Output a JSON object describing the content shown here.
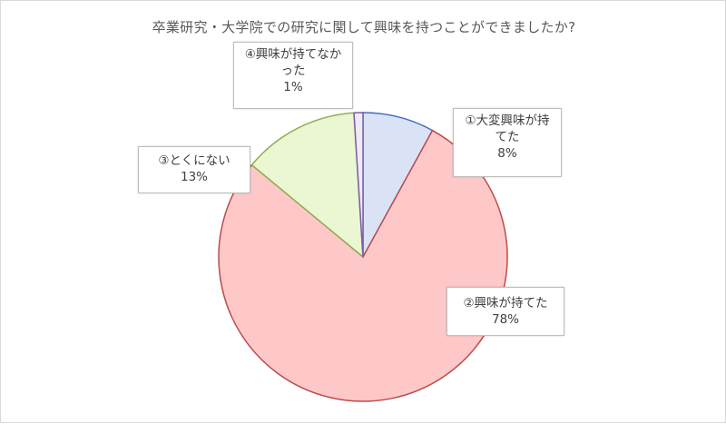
{
  "chart_data": {
    "type": "pie",
    "title": "卒業研究・大学院での研究に関して興味を持つことができましたか?",
    "slices": [
      {
        "name": "①大変興味が持てた",
        "percent_label": "8%",
        "value": 8,
        "color": "#dae3f6",
        "stroke": "#4a6fc0"
      },
      {
        "name": "②興味が持てた",
        "percent_label": "78%",
        "value": 78,
        "color": "#ffc8c8",
        "stroke": "#bd4b4b"
      },
      {
        "name": "③とくにない",
        "percent_label": "13%",
        "value": 13,
        "color": "#ebf6d2",
        "stroke": "#8fb04f"
      },
      {
        "name": "④興味が持てなかった",
        "percent_label": "1%",
        "value": 1,
        "color": "#efeaf7",
        "stroke": "#7a5ea5"
      }
    ]
  }
}
